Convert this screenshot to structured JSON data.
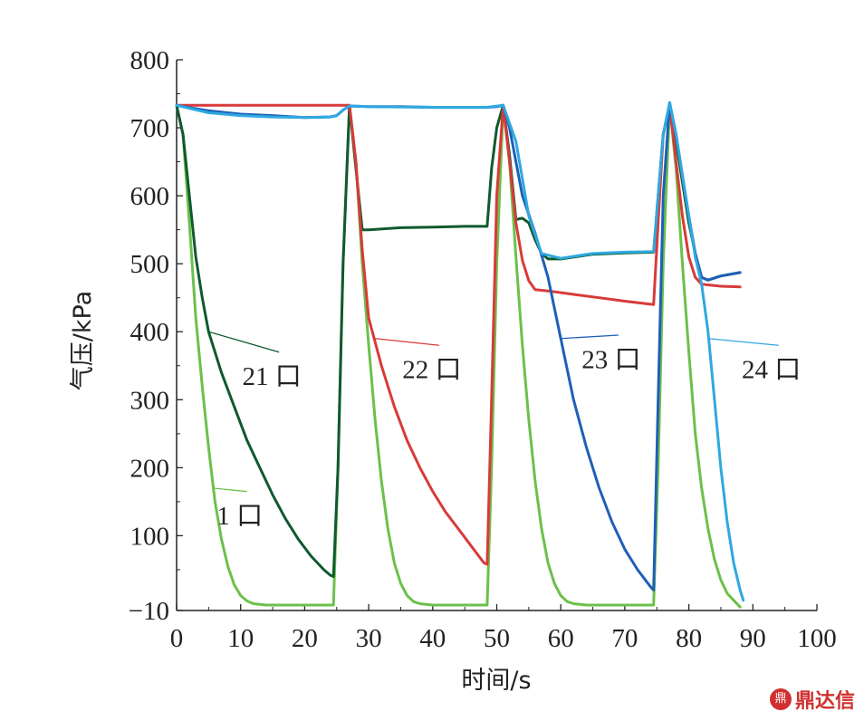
{
  "chart_data": {
    "type": "line",
    "xlabel": "时间/s",
    "ylabel": "气压/kPa",
    "xlim": [
      0,
      100
    ],
    "ylim": [
      -10,
      800
    ],
    "x_ticks": [
      0,
      10,
      20,
      30,
      40,
      50,
      60,
      70,
      80,
      90,
      100
    ],
    "y_ticks": [
      -10,
      100,
      200,
      300,
      400,
      500,
      600,
      700,
      800
    ],
    "y_tick_labels": [
      "−10",
      "100",
      "200",
      "300",
      "400",
      "500",
      "600",
      "700",
      "800"
    ],
    "grid": false,
    "series": [
      {
        "name": "1 口",
        "color": "#6cc04a",
        "points": [
          [
            0,
            733
          ],
          [
            1,
            690
          ],
          [
            2,
            560
          ],
          [
            3,
            420
          ],
          [
            4,
            320
          ],
          [
            5,
            230
          ],
          [
            6,
            150
          ],
          [
            7,
            95
          ],
          [
            8,
            55
          ],
          [
            9,
            28
          ],
          [
            10,
            12
          ],
          [
            11,
            4
          ],
          [
            12,
            0
          ],
          [
            14,
            -2
          ],
          [
            24.5,
            -2
          ],
          [
            25.2,
            200
          ],
          [
            26,
            500
          ],
          [
            27,
            733
          ],
          [
            28,
            650
          ],
          [
            29,
            500
          ],
          [
            30,
            380
          ],
          [
            31,
            270
          ],
          [
            32,
            180
          ],
          [
            33,
            110
          ],
          [
            34,
            60
          ],
          [
            35,
            30
          ],
          [
            36,
            12
          ],
          [
            37,
            3
          ],
          [
            38,
            0
          ],
          [
            40,
            -2
          ],
          [
            48.5,
            -2
          ],
          [
            49.2,
            200
          ],
          [
            50,
            500
          ],
          [
            51,
            733
          ],
          [
            52,
            650
          ],
          [
            53,
            510
          ],
          [
            54,
            380
          ],
          [
            55,
            270
          ],
          [
            56,
            180
          ],
          [
            57,
            110
          ],
          [
            58,
            60
          ],
          [
            59,
            30
          ],
          [
            60,
            12
          ],
          [
            61,
            3
          ],
          [
            62,
            0
          ],
          [
            64,
            -2
          ],
          [
            74.5,
            -2
          ],
          [
            75.2,
            200
          ],
          [
            76,
            500
          ],
          [
            77,
            733
          ],
          [
            78,
            640
          ],
          [
            79,
            500
          ],
          [
            80,
            370
          ],
          [
            81,
            250
          ],
          [
            82,
            170
          ],
          [
            83,
            110
          ],
          [
            84,
            65
          ],
          [
            85,
            35
          ],
          [
            86,
            15
          ],
          [
            87,
            5
          ],
          [
            88,
            -5
          ]
        ]
      },
      {
        "name": "21 口",
        "color": "#0f5a2e",
        "points": [
          [
            0,
            733
          ],
          [
            1,
            690
          ],
          [
            2,
            600
          ],
          [
            3,
            510
          ],
          [
            4,
            450
          ],
          [
            5,
            400
          ],
          [
            7,
            340
          ],
          [
            9,
            290
          ],
          [
            11,
            240
          ],
          [
            13,
            200
          ],
          [
            15,
            160
          ],
          [
            17,
            125
          ],
          [
            19,
            95
          ],
          [
            21,
            70
          ],
          [
            23,
            50
          ],
          [
            24,
            42
          ],
          [
            24.5,
            40
          ],
          [
            25.2,
            200
          ],
          [
            26,
            500
          ],
          [
            27,
            733
          ],
          [
            28,
            640
          ],
          [
            29,
            550
          ],
          [
            30,
            550
          ],
          [
            35,
            553
          ],
          [
            40,
            554
          ],
          [
            45,
            555
          ],
          [
            48.5,
            555
          ],
          [
            49.2,
            640
          ],
          [
            50,
            700
          ],
          [
            51,
            733
          ],
          [
            52,
            660
          ],
          [
            53,
            565
          ],
          [
            54,
            567
          ],
          [
            55,
            560
          ],
          [
            56,
            535
          ],
          [
            57,
            515
          ],
          [
            58,
            507
          ],
          [
            60,
            507
          ],
          [
            65,
            514
          ],
          [
            70,
            516
          ],
          [
            74.5,
            517
          ],
          [
            75.2,
            600
          ],
          [
            76,
            690
          ],
          [
            77,
            735
          ],
          [
            78,
            680
          ],
          [
            79,
            620
          ],
          [
            80,
            560
          ],
          [
            81,
            515
          ],
          [
            82,
            480
          ],
          [
            83,
            476
          ],
          [
            85,
            482
          ],
          [
            88,
            487
          ]
        ]
      },
      {
        "name": "22 口",
        "color": "#d93a3a",
        "points": [
          [
            0,
            733
          ],
          [
            25,
            733
          ],
          [
            26,
            733
          ],
          [
            27,
            733
          ],
          [
            28,
            650
          ],
          [
            29,
            520
          ],
          [
            30,
            420
          ],
          [
            32,
            350
          ],
          [
            34,
            290
          ],
          [
            36,
            240
          ],
          [
            38,
            200
          ],
          [
            40,
            165
          ],
          [
            42,
            135
          ],
          [
            44,
            110
          ],
          [
            46,
            85
          ],
          [
            48,
            60
          ],
          [
            48.5,
            58
          ],
          [
            49.2,
            300
          ],
          [
            50,
            600
          ],
          [
            51,
            733
          ],
          [
            52,
            650
          ],
          [
            53,
            560
          ],
          [
            54,
            505
          ],
          [
            55,
            475
          ],
          [
            56,
            462
          ],
          [
            58,
            460
          ],
          [
            62,
            455
          ],
          [
            66,
            450
          ],
          [
            70,
            445
          ],
          [
            74.5,
            440
          ],
          [
            75.2,
            560
          ],
          [
            76,
            690
          ],
          [
            77,
            733
          ],
          [
            78,
            650
          ],
          [
            79,
            570
          ],
          [
            80,
            510
          ],
          [
            81,
            480
          ],
          [
            82,
            470
          ],
          [
            85,
            467
          ],
          [
            88,
            466
          ]
        ]
      },
      {
        "name": "23 口",
        "color": "#1f5fb8",
        "points": [
          [
            0,
            733
          ],
          [
            5,
            725
          ],
          [
            10,
            720
          ],
          [
            15,
            718
          ],
          [
            20,
            715
          ],
          [
            24,
            716
          ],
          [
            25,
            718
          ],
          [
            26,
            726
          ],
          [
            27,
            732
          ],
          [
            30,
            731
          ],
          [
            35,
            731
          ],
          [
            40,
            730
          ],
          [
            45,
            730
          ],
          [
            48.5,
            730
          ],
          [
            50,
            731
          ],
          [
            51,
            733
          ],
          [
            52,
            700
          ],
          [
            53,
            650
          ],
          [
            54,
            600
          ],
          [
            56,
            545
          ],
          [
            58,
            480
          ],
          [
            60,
            390
          ],
          [
            62,
            300
          ],
          [
            64,
            230
          ],
          [
            66,
            170
          ],
          [
            68,
            120
          ],
          [
            70,
            80
          ],
          [
            72,
            50
          ],
          [
            74,
            25
          ],
          [
            74.5,
            20
          ],
          [
            75.2,
            300
          ],
          [
            76,
            600
          ],
          [
            77,
            737
          ],
          [
            78,
            690
          ],
          [
            79,
            630
          ],
          [
            80,
            570
          ],
          [
            81,
            515
          ],
          [
            82,
            480
          ],
          [
            83,
            476
          ],
          [
            85,
            482
          ],
          [
            88,
            487
          ]
        ]
      },
      {
        "name": "24 口",
        "color": "#2ea8e0",
        "points": [
          [
            0,
            733
          ],
          [
            5,
            722
          ],
          [
            10,
            718
          ],
          [
            15,
            716
          ],
          [
            20,
            715
          ],
          [
            24,
            716
          ],
          [
            25,
            718
          ],
          [
            26,
            726
          ],
          [
            27,
            732
          ],
          [
            30,
            731
          ],
          [
            40,
            730
          ],
          [
            48.5,
            730
          ],
          [
            51,
            733
          ],
          [
            53,
            680
          ],
          [
            55,
            570
          ],
          [
            57,
            515
          ],
          [
            60,
            508
          ],
          [
            65,
            515
          ],
          [
            70,
            517
          ],
          [
            74.5,
            518
          ],
          [
            75.2,
            600
          ],
          [
            76,
            690
          ],
          [
            77,
            737
          ],
          [
            78,
            690
          ],
          [
            79,
            630
          ],
          [
            80,
            570
          ],
          [
            81,
            510
          ],
          [
            82,
            470
          ],
          [
            83,
            400
          ],
          [
            84,
            300
          ],
          [
            85,
            200
          ],
          [
            86,
            120
          ],
          [
            87,
            60
          ],
          [
            88,
            20
          ],
          [
            88.5,
            5
          ]
        ]
      }
    ],
    "annotations": [
      {
        "text": "21 口",
        "series": "21 口",
        "at": [
          5,
          400
        ],
        "label_at": [
          16,
          335
        ]
      },
      {
        "text": "22 口",
        "series": "22 口",
        "at": [
          31,
          390
        ],
        "label_at": [
          41,
          345
        ]
      },
      {
        "text": "23 口",
        "series": "23 口",
        "at": [
          60,
          390
        ],
        "label_at": [
          69,
          360
        ]
      },
      {
        "text": "24 口",
        "series": "24 口",
        "at": [
          83,
          390
        ],
        "label_at": [
          94,
          345
        ]
      },
      {
        "text": "1 口",
        "series": "1 口",
        "at": [
          5.6,
          170
        ],
        "label_at": [
          11,
          130
        ]
      }
    ]
  },
  "logo": {
    "mark": "鼎",
    "text": "鼎达信"
  }
}
